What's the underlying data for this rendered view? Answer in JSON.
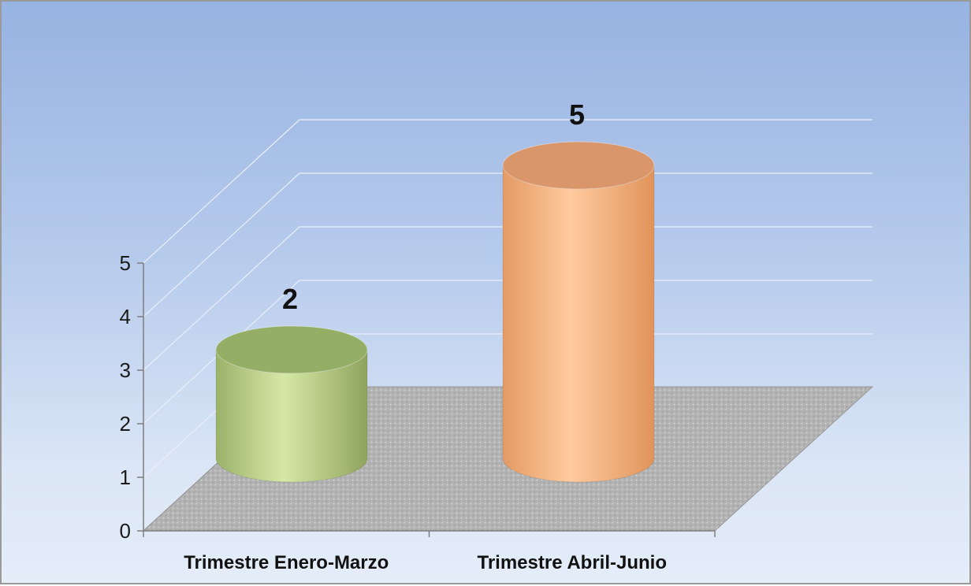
{
  "chart_data": {
    "type": "bar",
    "style": "3d-cylinder",
    "categories": [
      "Trimestre Enero-Marzo",
      "Trimestre Abril-Junio"
    ],
    "series": [
      {
        "values": [
          2,
          5
        ],
        "colors": [
          "#c6dc96",
          "#f7b989"
        ]
      }
    ],
    "data_labels": [
      "2",
      "5"
    ],
    "ylim": [
      0,
      5
    ],
    "yticks": [
      "0",
      "1",
      "2",
      "3",
      "4",
      "5"
    ],
    "grid": true,
    "legend": "none",
    "floor_color": "#b5b5b5",
    "background_gradient": [
      "#97b3e1",
      "#e4edf8"
    ]
  }
}
